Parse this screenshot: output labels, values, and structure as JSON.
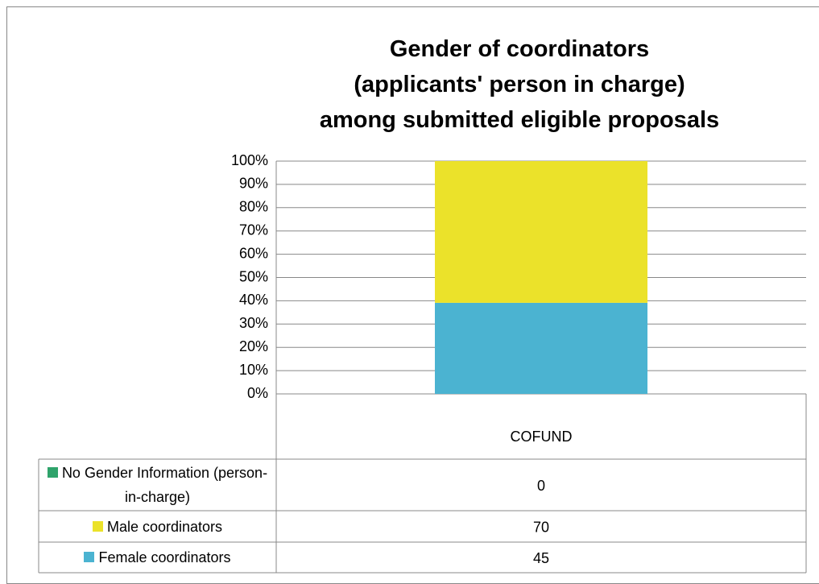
{
  "chart_data": {
    "type": "bar",
    "stacked": "percent",
    "title": "Gender of coordinators\n(applicants' person in charge)\namong submitted eligible proposals",
    "categories": [
      "COFUND"
    ],
    "series": [
      {
        "name": "No Gender Information (person-in-charge)",
        "color": "#2fa36b",
        "values": [
          0
        ]
      },
      {
        "name": "Male coordinators",
        "color": "#ebe22a",
        "values": [
          70
        ]
      },
      {
        "name": "Female coordinators",
        "color": "#4bb3d1",
        "values": [
          45
        ]
      }
    ],
    "ylim": [
      0,
      100
    ],
    "yticks": [
      {
        "value": 0,
        "label": "0%"
      },
      {
        "value": 10,
        "label": "10%"
      },
      {
        "value": 20,
        "label": "20%"
      },
      {
        "value": 30,
        "label": "30%"
      },
      {
        "value": 40,
        "label": "40%"
      },
      {
        "value": 50,
        "label": "50%"
      },
      {
        "value": 60,
        "label": "60%"
      },
      {
        "value": 70,
        "label": "70%"
      },
      {
        "value": 80,
        "label": "80%"
      },
      {
        "value": 90,
        "label": "90%"
      },
      {
        "value": 100,
        "label": "100%"
      }
    ],
    "grid": true,
    "data_table": true
  }
}
